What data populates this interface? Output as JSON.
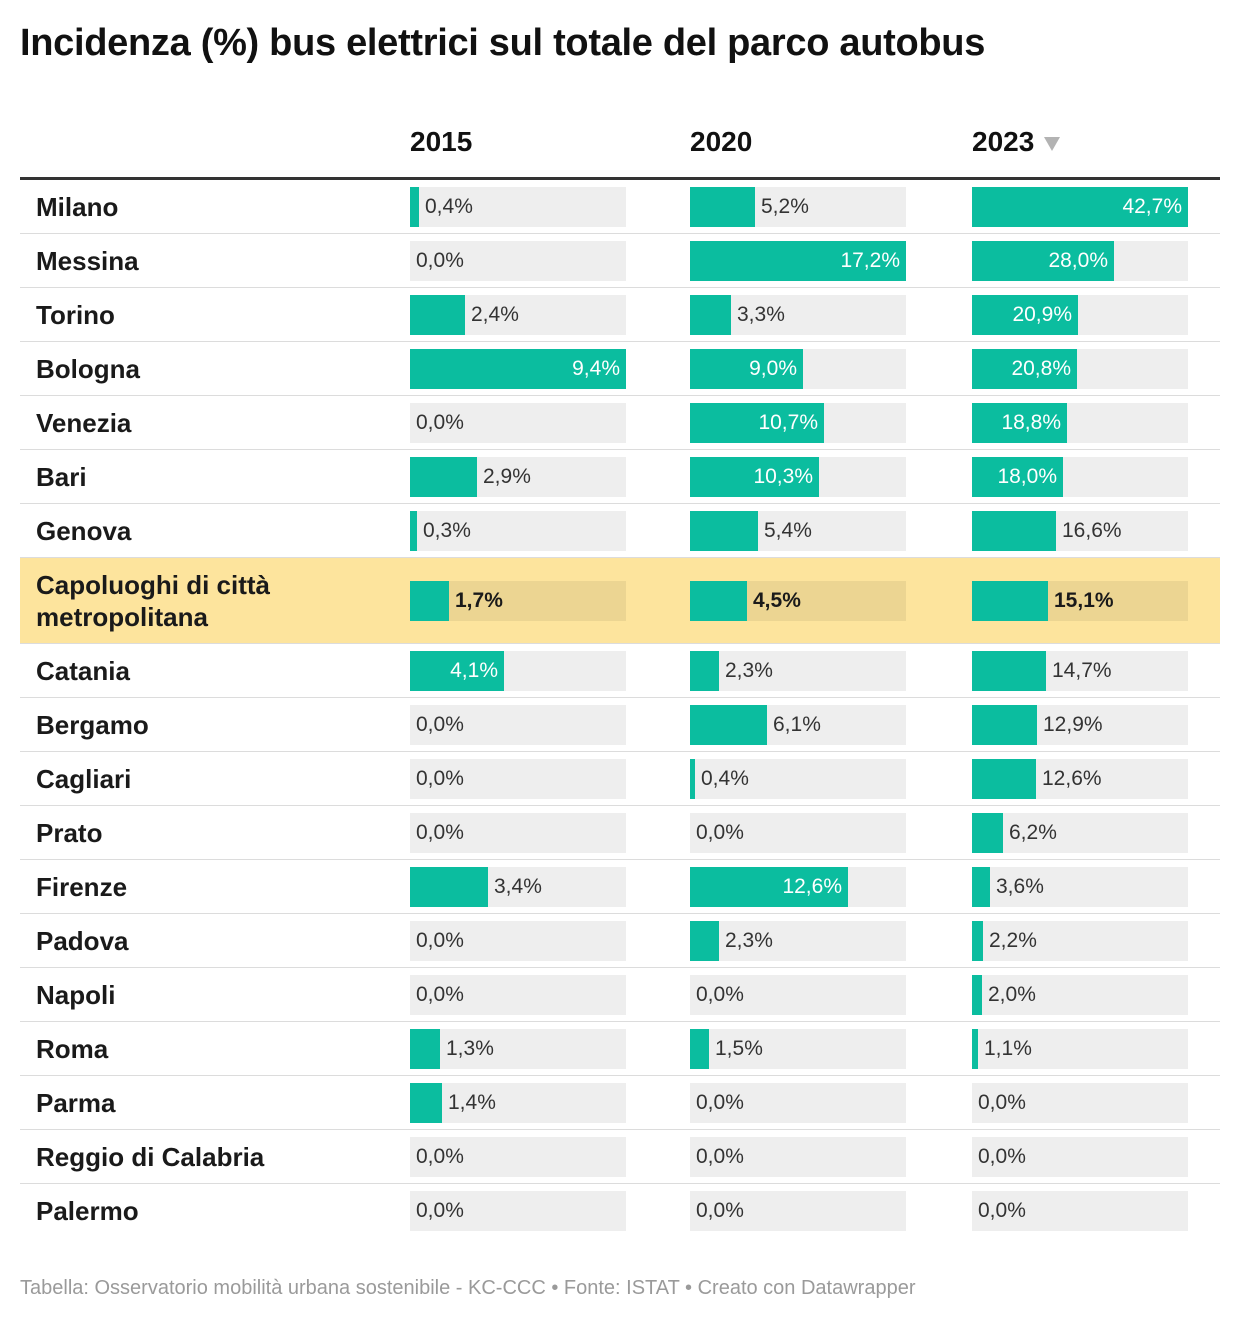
{
  "title": "Incidenza (%) bus elettrici sul totale del parco autobus",
  "footer": "Tabella: Osservatorio mobilità urbana sostenibile - KC-CCC • Fonte: ISTAT • Creato con Datawrapper",
  "colors": {
    "bar": "#0bbd9f",
    "track": "#eeeeee",
    "highlight": "#fde49d",
    "highlight_track": "#ecd592"
  },
  "sort_icon": "triangle-down-icon",
  "chart_data": {
    "type": "table",
    "columns": [
      "2015",
      "2020",
      "2023"
    ],
    "sorted_by": "2023",
    "scale_max": [
      9.4,
      17.2,
      42.7
    ],
    "highlight_row": "Capoluoghi di città metropolitana",
    "rows": [
      {
        "city": "Milano",
        "values": [
          0.4,
          5.2,
          42.7
        ],
        "labels": [
          "0,4%",
          "5,2%",
          "42,7%"
        ]
      },
      {
        "city": "Messina",
        "values": [
          0.0,
          17.2,
          28.0
        ],
        "labels": [
          "0,0%",
          "17,2%",
          "28,0%"
        ]
      },
      {
        "city": "Torino",
        "values": [
          2.4,
          3.3,
          20.9
        ],
        "labels": [
          "2,4%",
          "3,3%",
          "20,9%"
        ]
      },
      {
        "city": "Bologna",
        "values": [
          9.4,
          9.0,
          20.8
        ],
        "labels": [
          "9,4%",
          "9,0%",
          "20,8%"
        ]
      },
      {
        "city": "Venezia",
        "values": [
          0.0,
          10.7,
          18.8
        ],
        "labels": [
          "0,0%",
          "10,7%",
          "18,8%"
        ]
      },
      {
        "city": "Bari",
        "values": [
          2.9,
          10.3,
          18.0
        ],
        "labels": [
          "2,9%",
          "10,3%",
          "18,0%"
        ]
      },
      {
        "city": "Genova",
        "values": [
          0.3,
          5.4,
          16.6
        ],
        "labels": [
          "0,3%",
          "5,4%",
          "16,6%"
        ]
      },
      {
        "city": "Capoluoghi di città metropolitana",
        "values": [
          1.7,
          4.5,
          15.1
        ],
        "labels": [
          "1,7%",
          "4,5%",
          "15,1%"
        ]
      },
      {
        "city": "Catania",
        "values": [
          4.1,
          2.3,
          14.7
        ],
        "labels": [
          "4,1%",
          "2,3%",
          "14,7%"
        ]
      },
      {
        "city": "Bergamo",
        "values": [
          0.0,
          6.1,
          12.9
        ],
        "labels": [
          "0,0%",
          "6,1%",
          "12,9%"
        ]
      },
      {
        "city": "Cagliari",
        "values": [
          0.0,
          0.4,
          12.6
        ],
        "labels": [
          "0,0%",
          "0,4%",
          "12,6%"
        ]
      },
      {
        "city": "Prato",
        "values": [
          0.0,
          0.0,
          6.2
        ],
        "labels": [
          "0,0%",
          "0,0%",
          "6,2%"
        ]
      },
      {
        "city": "Firenze",
        "values": [
          3.4,
          12.6,
          3.6
        ],
        "labels": [
          "3,4%",
          "12,6%",
          "3,6%"
        ]
      },
      {
        "city": "Padova",
        "values": [
          0.0,
          2.3,
          2.2
        ],
        "labels": [
          "0,0%",
          "2,3%",
          "2,2%"
        ]
      },
      {
        "city": "Napoli",
        "values": [
          0.0,
          0.0,
          2.0
        ],
        "labels": [
          "0,0%",
          "0,0%",
          "2,0%"
        ]
      },
      {
        "city": "Roma",
        "values": [
          1.3,
          1.5,
          1.1
        ],
        "labels": [
          "1,3%",
          "1,5%",
          "1,1%"
        ]
      },
      {
        "city": "Parma",
        "values": [
          1.4,
          0.0,
          0.0
        ],
        "labels": [
          "1,4%",
          "0,0%",
          "0,0%"
        ]
      },
      {
        "city": "Reggio di Calabria",
        "values": [
          0.0,
          0.0,
          0.0
        ],
        "labels": [
          "0,0%",
          "0,0%",
          "0,0%"
        ]
      },
      {
        "city": "Palermo",
        "values": [
          0.0,
          0.0,
          0.0
        ],
        "labels": [
          "0,0%",
          "0,0%",
          "0,0%"
        ]
      }
    ]
  }
}
